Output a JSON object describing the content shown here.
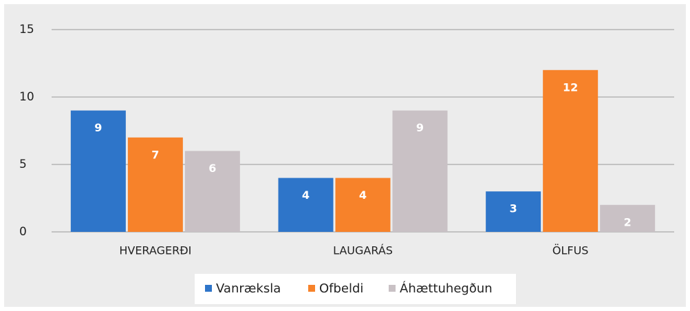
{
  "chart_data": {
    "type": "bar",
    "categories": [
      "HVERAGERÐI",
      "LAUGARÁS",
      "ÖLFUS"
    ],
    "series": [
      {
        "name": "Vanræksla",
        "color": "#2e75c9",
        "values": [
          9,
          4,
          3
        ]
      },
      {
        "name": "Ofbeldi",
        "color": "#f7822a",
        "values": [
          7,
          4,
          12
        ]
      },
      {
        "name": "Áhættuhegðun",
        "color": "#c9c1c5",
        "values": [
          6,
          9,
          2
        ]
      }
    ],
    "ylim": [
      0,
      15
    ],
    "yticks": [
      0,
      5,
      10,
      15
    ],
    "grid": true,
    "legend": "bottom"
  }
}
